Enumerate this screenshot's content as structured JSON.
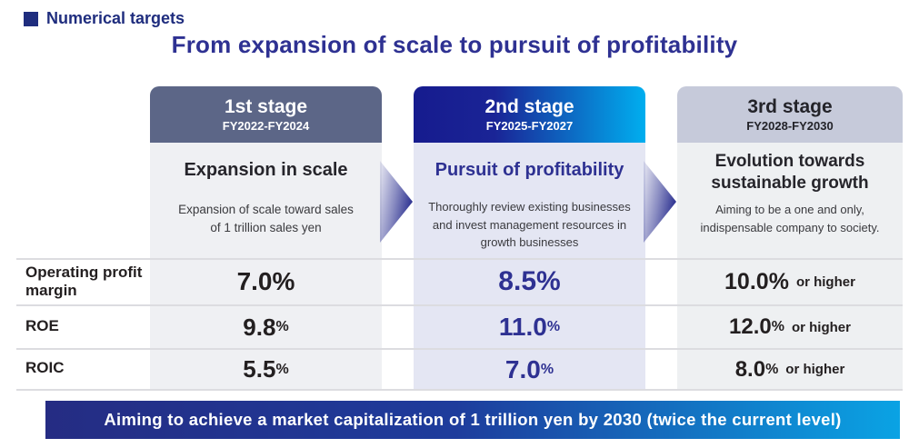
{
  "header": {
    "section_label": "Numerical targets",
    "title": "From expansion of scale to pursuit of profitability"
  },
  "stages": [
    {
      "name": "1st stage",
      "period": "FY2022-FY2024",
      "heading": "Expansion in scale",
      "description": "Expansion of scale toward sales of 1 trillion sales yen"
    },
    {
      "name": "2nd stage",
      "period": "FY2025-FY2027",
      "heading": "Pursuit of profitability",
      "description": "Thoroughly review existing businesses and invest management resources in growth businesses"
    },
    {
      "name": "3rd stage",
      "period": "FY2028-FY2030",
      "heading": "Evolution towards sustainable growth",
      "description": "Aiming to be a one and only, indispensable company to society."
    }
  ],
  "metrics": {
    "rows": [
      {
        "label": "Operating profit margin",
        "stage1_value": "7.0",
        "stage1_unit": "%",
        "stage2_value": "8.5",
        "stage2_unit": "%",
        "stage3_value": "10.0",
        "stage3_unit": "%",
        "stage3_suffix": "or higher"
      },
      {
        "label": "ROE",
        "stage1_value": "9.8",
        "stage1_unit": "%",
        "stage2_value": "11.0",
        "stage2_unit": "%",
        "stage3_value": "12.0",
        "stage3_unit": "%",
        "stage3_suffix": "or higher"
      },
      {
        "label": "ROIC",
        "stage1_value": "5.5",
        "stage1_unit": "%",
        "stage2_value": "7.0",
        "stage2_unit": "%",
        "stage3_value": "8.0",
        "stage3_unit": "%",
        "stage3_suffix": "or higher"
      }
    ]
  },
  "banner": {
    "text": "Aiming to achieve a market capitalization of 1 trillion yen by 2030 (twice the current level)"
  },
  "colors": {
    "accent_navy": "#1f2d7e",
    "title_blue": "#2e3192",
    "stage1_header": "#5c6687",
    "stage2_gradient_start": "#161b8e",
    "stage2_gradient_end": "#00aeef",
    "stage3_header": "#c6cada",
    "column1_bg": "#eff0f3",
    "column2_bg": "#e4e6f3",
    "column3_bg": "#eef0f2",
    "banner_gradient_start": "#252c83",
    "banner_gradient_end": "#0aa3e4"
  }
}
